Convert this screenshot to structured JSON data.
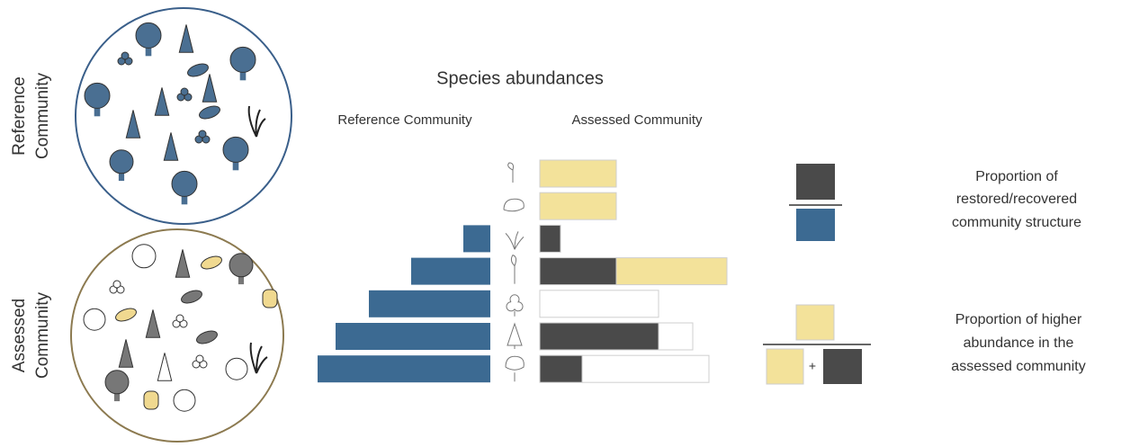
{
  "side_labels": {
    "reference": [
      "Reference",
      "Community"
    ],
    "assessed": [
      "Assessed",
      "Community"
    ]
  },
  "title": "Species abundances",
  "column_headers": {
    "reference": "Reference Community",
    "assessed": "Assessed Community"
  },
  "colors": {
    "reference": "#3c6a92",
    "dark": "#4a4a4a",
    "yellow": "#f3e29a",
    "white": "#ffffff"
  },
  "rows": [
    {
      "reference": null,
      "assessed": [
        {
          "color": "#f3e29a",
          "value": 85
        }
      ]
    },
    {
      "reference": null,
      "assessed": [
        {
          "color": "#f3e29a",
          "value": 85
        }
      ]
    },
    {
      "reference": 30,
      "assessed": [
        {
          "color": "#4a4a4a",
          "value": 23
        }
      ]
    },
    {
      "reference": 88,
      "assessed": [
        {
          "color": "#4a4a4a",
          "value": 85
        },
        {
          "color": "#f3e29a",
          "value": 123
        }
      ]
    },
    {
      "reference": 135,
      "assessed": [
        {
          "color": "#ffffff",
          "value": 132
        }
      ]
    },
    {
      "reference": 172,
      "assessed": [
        {
          "color": "#4a4a4a",
          "value": 132
        },
        {
          "color": "#ffffff",
          "value": 38
        }
      ]
    },
    {
      "reference": 192,
      "assessed": [
        {
          "color": "#4a4a4a",
          "value": 47
        },
        {
          "color": "#ffffff",
          "value": 141
        }
      ]
    }
  ],
  "legend": {
    "restored": [
      "Proportion of",
      "restored/recovered",
      "community structure"
    ],
    "higher": [
      "Proportion of higher",
      "abundance in the",
      "assessed community"
    ],
    "plus": "+"
  }
}
